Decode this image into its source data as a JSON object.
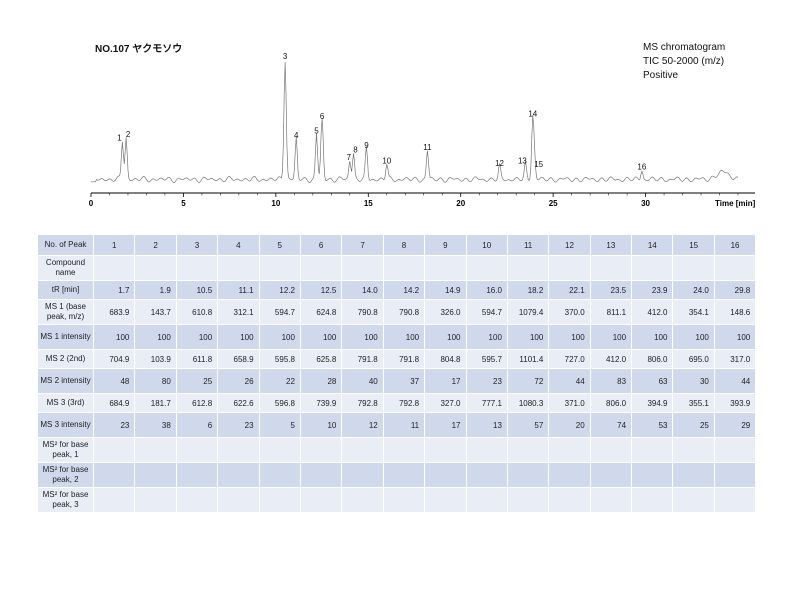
{
  "header": {
    "title": "NO.107 ヤクモソウ",
    "info_lines": [
      "MS chromatogram",
      "TIC 50-2000 (m/z)",
      "Positive"
    ]
  },
  "chart_data": {
    "type": "line",
    "xlabel": "Time [min]",
    "xlim": [
      0,
      35
    ],
    "xticks": [
      0,
      5,
      10,
      15,
      20,
      25,
      30
    ],
    "ylim": [
      0,
      100
    ],
    "peaks": [
      {
        "label": "1",
        "x": 1.7,
        "y": 32
      },
      {
        "label": "2",
        "x": 1.9,
        "y": 35
      },
      {
        "label": "3",
        "x": 10.5,
        "y": 100
      },
      {
        "label": "4",
        "x": 11.1,
        "y": 34
      },
      {
        "label": "5",
        "x": 12.2,
        "y": 38
      },
      {
        "label": "6",
        "x": 12.5,
        "y": 50
      },
      {
        "label": "7",
        "x": 14.0,
        "y": 16
      },
      {
        "label": "8",
        "x": 14.2,
        "y": 22
      },
      {
        "label": "9",
        "x": 14.9,
        "y": 26
      },
      {
        "label": "10",
        "x": 16.0,
        "y": 13
      },
      {
        "label": "11",
        "x": 18.2,
        "y": 24
      },
      {
        "label": "12",
        "x": 22.1,
        "y": 11
      },
      {
        "label": "13",
        "x": 23.5,
        "y": 13
      },
      {
        "label": "14",
        "x": 23.9,
        "y": 52
      },
      {
        "label": "15",
        "x": 24.0,
        "y": 10
      },
      {
        "label": "16",
        "x": 29.8,
        "y": 8
      }
    ]
  },
  "table": {
    "rows": [
      {
        "label": "No. of Peak",
        "values": [
          "1",
          "2",
          "3",
          "4",
          "5",
          "6",
          "7",
          "8",
          "9",
          "10",
          "11",
          "12",
          "13",
          "14",
          "15",
          "16"
        ]
      },
      {
        "label": "Compound name",
        "values": [
          "",
          "",
          "",
          "",
          "",
          "",
          "",
          "",
          "",
          "",
          "",
          "",
          "",
          "",
          "",
          ""
        ]
      },
      {
        "label": "tR [min]",
        "values": [
          "1.7",
          "1.9",
          "10.5",
          "11.1",
          "12.2",
          "12.5",
          "14.0",
          "14.2",
          "14.9",
          "16.0",
          "18.2",
          "22.1",
          "23.5",
          "23.9",
          "24.0",
          "29.8"
        ]
      },
      {
        "label": "MS 1 (base peak, m/z)",
        "values": [
          "683.9",
          "143.7",
          "610.8",
          "312.1",
          "594.7",
          "624.8",
          "790.8",
          "790.8",
          "326.0",
          "594.7",
          "1079.4",
          "370.0",
          "811.1",
          "412.0",
          "354.1",
          "148.6"
        ]
      },
      {
        "label": "MS 1 intensity",
        "values": [
          "100",
          "100",
          "100",
          "100",
          "100",
          "100",
          "100",
          "100",
          "100",
          "100",
          "100",
          "100",
          "100",
          "100",
          "100",
          "100"
        ]
      },
      {
        "label": "MS 2 (2nd)",
        "values": [
          "704.9",
          "103.9",
          "611.8",
          "658.9",
          "595.8",
          "625.8",
          "791.8",
          "791.8",
          "804.8",
          "595.7",
          "1101.4",
          "727.0",
          "412.0",
          "806.0",
          "695.0",
          "317.0"
        ]
      },
      {
        "label": "MS 2 intensity",
        "values": [
          "48",
          "80",
          "25",
          "26",
          "22",
          "28",
          "40",
          "37",
          "17",
          "23",
          "72",
          "44",
          "83",
          "63",
          "30",
          "44"
        ]
      },
      {
        "label": "MS 3 (3rd)",
        "values": [
          "684.9",
          "181.7",
          "612.8",
          "622.6",
          "596.8",
          "739.9",
          "792.8",
          "792.8",
          "327.0",
          "777.1",
          "1080.3",
          "371.0",
          "806.0",
          "394.9",
          "355.1",
          "393.9"
        ]
      },
      {
        "label": "MS 3 intensity",
        "values": [
          "23",
          "38",
          "6",
          "23",
          "5",
          "10",
          "12",
          "11",
          "17",
          "13",
          "57",
          "20",
          "74",
          "53",
          "25",
          "29"
        ]
      },
      {
        "label": "MS² for base peak, 1",
        "values": [
          "",
          "",
          "",
          "",
          "",
          "",
          "",
          "",
          "",
          "",
          "",
          "",
          "",
          "",
          "",
          ""
        ]
      },
      {
        "label": "MS² for base peak, 2",
        "values": [
          "",
          "",
          "",
          "",
          "",
          "",
          "",
          "",
          "",
          "",
          "",
          "",
          "",
          "",
          "",
          ""
        ]
      },
      {
        "label": "MS² for base peak, 3",
        "values": [
          "",
          "",
          "",
          "",
          "",
          "",
          "",
          "",
          "",
          "",
          "",
          "",
          "",
          "",
          "",
          ""
        ]
      }
    ]
  }
}
